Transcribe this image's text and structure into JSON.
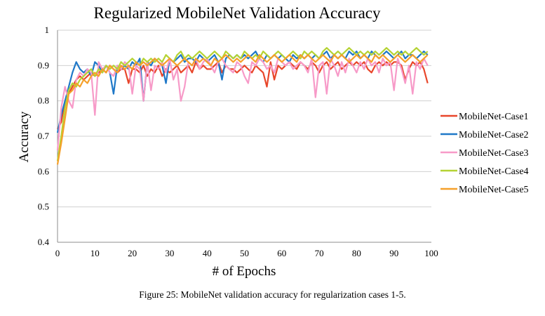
{
  "caption": "Figure 25: MobileNet validation accuracy for regularization cases 1-5.",
  "chart_data": {
    "type": "line",
    "title": "Regularized MobileNet Validation Accuracy",
    "xlabel": "# of Epochs",
    "ylabel": "Accuracy",
    "xlim": [
      0,
      100
    ],
    "ylim": [
      0.4,
      1.0
    ],
    "x_ticks": [
      0,
      10,
      20,
      30,
      40,
      50,
      60,
      70,
      80,
      90,
      100
    ],
    "y_ticks": [
      0.4,
      0.5,
      0.6,
      0.7,
      0.8,
      0.9,
      1
    ],
    "y_tick_labels": [
      "0.4",
      "0.5",
      "0.6",
      "0.7",
      "0.8",
      "0.9",
      "1"
    ],
    "grid": "horizontal",
    "legend_position": "right",
    "series": [
      {
        "name": "MobileNet-Case1",
        "color": "#e8462a",
        "x": [
          0,
          1,
          2,
          3,
          4,
          5,
          6,
          7,
          8,
          9,
          10,
          11,
          12,
          13,
          14,
          15,
          16,
          17,
          18,
          19,
          20,
          21,
          22,
          23,
          24,
          25,
          26,
          27,
          28,
          29,
          30,
          31,
          32,
          33,
          34,
          35,
          36,
          37,
          38,
          39,
          40,
          41,
          42,
          43,
          44,
          45,
          46,
          47,
          48,
          49,
          50,
          51,
          52,
          53,
          54,
          55,
          56,
          57,
          58,
          59,
          60,
          61,
          62,
          63,
          64,
          65,
          66,
          67,
          68,
          69,
          70,
          71,
          72,
          73,
          74,
          75,
          76,
          77,
          78,
          79,
          80,
          81,
          82,
          83,
          84,
          85,
          86,
          87,
          88,
          89,
          90,
          91,
          92,
          93,
          94,
          95,
          96,
          97,
          98,
          99
        ],
        "values": [
          0.72,
          0.74,
          0.8,
          0.82,
          0.84,
          0.86,
          0.87,
          0.86,
          0.87,
          0.88,
          0.87,
          0.88,
          0.89,
          0.88,
          0.9,
          0.89,
          0.88,
          0.89,
          0.89,
          0.85,
          0.89,
          0.89,
          0.88,
          0.9,
          0.87,
          0.89,
          0.88,
          0.9,
          0.87,
          0.89,
          0.88,
          0.89,
          0.9,
          0.88,
          0.89,
          0.9,
          0.88,
          0.91,
          0.89,
          0.9,
          0.89,
          0.89,
          0.9,
          0.91,
          0.88,
          0.9,
          0.89,
          0.89,
          0.88,
          0.89,
          0.9,
          0.89,
          0.88,
          0.9,
          0.89,
          0.88,
          0.84,
          0.91,
          0.86,
          0.9,
          0.89,
          0.9,
          0.91,
          0.9,
          0.89,
          0.91,
          0.9,
          0.89,
          0.91,
          0.9,
          0.88,
          0.9,
          0.91,
          0.89,
          0.9,
          0.91,
          0.89,
          0.9,
          0.91,
          0.9,
          0.91,
          0.9,
          0.91,
          0.89,
          0.88,
          0.9,
          0.91,
          0.9,
          0.91,
          0.9,
          0.91,
          0.91,
          0.9,
          0.86,
          0.89,
          0.91,
          0.9,
          0.91,
          0.89,
          0.85
        ]
      },
      {
        "name": "MobileNet-Case2",
        "color": "#1f78c8",
        "x": [
          0,
          1,
          2,
          3,
          4,
          5,
          6,
          7,
          8,
          9,
          10,
          11,
          12,
          13,
          14,
          15,
          16,
          17,
          18,
          19,
          20,
          21,
          22,
          23,
          24,
          25,
          26,
          27,
          28,
          29,
          30,
          31,
          32,
          33,
          34,
          35,
          36,
          37,
          38,
          39,
          40,
          41,
          42,
          43,
          44,
          45,
          46,
          47,
          48,
          49,
          50,
          51,
          52,
          53,
          54,
          55,
          56,
          57,
          58,
          59,
          60,
          61,
          62,
          63,
          64,
          65,
          66,
          67,
          68,
          69,
          70,
          71,
          72,
          73,
          74,
          75,
          76,
          77,
          78,
          79,
          80,
          81,
          82,
          83,
          84,
          85,
          86,
          87,
          88,
          89,
          90,
          91,
          92,
          93,
          94,
          95,
          96,
          97,
          98,
          99
        ],
        "values": [
          0.71,
          0.76,
          0.8,
          0.84,
          0.88,
          0.91,
          0.89,
          0.88,
          0.89,
          0.87,
          0.91,
          0.9,
          0.88,
          0.9,
          0.88,
          0.82,
          0.9,
          0.89,
          0.9,
          0.89,
          0.91,
          0.9,
          0.92,
          0.8,
          0.91,
          0.9,
          0.92,
          0.91,
          0.9,
          0.85,
          0.92,
          0.91,
          0.92,
          0.93,
          0.91,
          0.92,
          0.92,
          0.91,
          0.93,
          0.92,
          0.91,
          0.92,
          0.93,
          0.91,
          0.86,
          0.92,
          0.93,
          0.92,
          0.93,
          0.92,
          0.93,
          0.92,
          0.93,
          0.94,
          0.92,
          0.91,
          0.93,
          0.92,
          0.93,
          0.92,
          0.93,
          0.92,
          0.91,
          0.93,
          0.92,
          0.93,
          0.92,
          0.93,
          0.92,
          0.93,
          0.92,
          0.93,
          0.94,
          0.92,
          0.93,
          0.92,
          0.93,
          0.92,
          0.94,
          0.93,
          0.94,
          0.92,
          0.93,
          0.92,
          0.94,
          0.93,
          0.92,
          0.93,
          0.94,
          0.93,
          0.92,
          0.93,
          0.94,
          0.92,
          0.93,
          0.93,
          0.92,
          0.93,
          0.94,
          0.93
        ]
      },
      {
        "name": "MobileNet-Case3",
        "color": "#f79ac8",
        "x": [
          0,
          1,
          2,
          3,
          4,
          5,
          6,
          7,
          8,
          9,
          10,
          11,
          12,
          13,
          14,
          15,
          16,
          17,
          18,
          19,
          20,
          21,
          22,
          23,
          24,
          25,
          26,
          27,
          28,
          29,
          30,
          31,
          32,
          33,
          34,
          35,
          36,
          37,
          38,
          39,
          40,
          41,
          42,
          43,
          44,
          45,
          46,
          47,
          48,
          49,
          50,
          51,
          52,
          53,
          54,
          55,
          56,
          57,
          58,
          59,
          60,
          61,
          62,
          63,
          64,
          65,
          66,
          67,
          68,
          69,
          70,
          71,
          72,
          73,
          74,
          75,
          76,
          77,
          78,
          79,
          80,
          81,
          82,
          83,
          84,
          85,
          86,
          87,
          88,
          89,
          90,
          91,
          92,
          93,
          94,
          95,
          96,
          97,
          98,
          99
        ],
        "values": [
          0.66,
          0.78,
          0.84,
          0.8,
          0.78,
          0.86,
          0.88,
          0.87,
          0.89,
          0.88,
          0.76,
          0.91,
          0.89,
          0.9,
          0.88,
          0.87,
          0.9,
          0.89,
          0.91,
          0.9,
          0.82,
          0.9,
          0.89,
          0.8,
          0.91,
          0.83,
          0.9,
          0.89,
          0.91,
          0.88,
          0.92,
          0.86,
          0.89,
          0.8,
          0.84,
          0.91,
          0.9,
          0.92,
          0.89,
          0.91,
          0.92,
          0.9,
          0.88,
          0.91,
          0.92,
          0.9,
          0.89,
          0.88,
          0.91,
          0.9,
          0.87,
          0.85,
          0.91,
          0.9,
          0.92,
          0.91,
          0.89,
          0.9,
          0.88,
          0.92,
          0.91,
          0.9,
          0.91,
          0.89,
          0.9,
          0.91,
          0.9,
          0.88,
          0.92,
          0.81,
          0.9,
          0.91,
          0.82,
          0.92,
          0.9,
          0.87,
          0.91,
          0.88,
          0.92,
          0.9,
          0.88,
          0.91,
          0.89,
          0.92,
          0.9,
          0.91,
          0.88,
          0.92,
          0.9,
          0.91,
          0.83,
          0.92,
          0.89,
          0.85,
          0.9,
          0.82,
          0.91,
          0.89,
          0.92,
          0.9
        ]
      },
      {
        "name": "MobileNet-Case4",
        "color": "#b5d334",
        "x": [
          0,
          1,
          2,
          3,
          4,
          5,
          6,
          7,
          8,
          9,
          10,
          11,
          12,
          13,
          14,
          15,
          16,
          17,
          18,
          19,
          20,
          21,
          22,
          23,
          24,
          25,
          26,
          27,
          28,
          29,
          30,
          31,
          32,
          33,
          34,
          35,
          36,
          37,
          38,
          39,
          40,
          41,
          42,
          43,
          44,
          45,
          46,
          47,
          48,
          49,
          50,
          51,
          52,
          53,
          54,
          55,
          56,
          57,
          58,
          59,
          60,
          61,
          62,
          63,
          64,
          65,
          66,
          67,
          68,
          69,
          70,
          71,
          72,
          73,
          74,
          75,
          76,
          77,
          78,
          79,
          80,
          81,
          82,
          83,
          84,
          85,
          86,
          87,
          88,
          89,
          90,
          91,
          92,
          93,
          94,
          95,
          96,
          97,
          98,
          99
        ],
        "values": [
          0.63,
          0.7,
          0.78,
          0.83,
          0.85,
          0.84,
          0.86,
          0.87,
          0.88,
          0.89,
          0.87,
          0.89,
          0.88,
          0.9,
          0.89,
          0.9,
          0.89,
          0.91,
          0.9,
          0.91,
          0.92,
          0.91,
          0.9,
          0.92,
          0.91,
          0.92,
          0.91,
          0.92,
          0.91,
          0.93,
          0.92,
          0.91,
          0.93,
          0.94,
          0.92,
          0.93,
          0.92,
          0.93,
          0.94,
          0.93,
          0.92,
          0.93,
          0.94,
          0.93,
          0.92,
          0.94,
          0.93,
          0.92,
          0.93,
          0.92,
          0.94,
          0.93,
          0.92,
          0.93,
          0.92,
          0.94,
          0.93,
          0.92,
          0.93,
          0.94,
          0.93,
          0.92,
          0.93,
          0.94,
          0.93,
          0.92,
          0.94,
          0.93,
          0.94,
          0.93,
          0.92,
          0.94,
          0.95,
          0.94,
          0.93,
          0.94,
          0.93,
          0.94,
          0.95,
          0.94,
          0.93,
          0.94,
          0.93,
          0.94,
          0.93,
          0.94,
          0.93,
          0.94,
          0.95,
          0.94,
          0.93,
          0.94,
          0.93,
          0.94,
          0.93,
          0.94,
          0.95,
          0.94,
          0.93,
          0.94
        ]
      },
      {
        "name": "MobileNet-Case5",
        "color": "#f5a02a",
        "x": [
          0,
          1,
          2,
          3,
          4,
          5,
          6,
          7,
          8,
          9,
          10,
          11,
          12,
          13,
          14,
          15,
          16,
          17,
          18,
          19,
          20,
          21,
          22,
          23,
          24,
          25,
          26,
          27,
          28,
          29,
          30,
          31,
          32,
          33,
          34,
          35,
          36,
          37,
          38,
          39,
          40,
          41,
          42,
          43,
          44,
          45,
          46,
          47,
          48,
          49,
          50,
          51,
          52,
          53,
          54,
          55,
          56,
          57,
          58,
          59,
          60,
          61,
          62,
          63,
          64,
          65,
          66,
          67,
          68,
          69,
          70,
          71,
          72,
          73,
          74,
          75,
          76,
          77,
          78,
          79,
          80,
          81,
          82,
          83,
          84,
          85,
          86,
          87,
          88,
          89,
          90,
          91,
          92,
          93,
          94,
          95,
          96,
          97,
          98,
          99
        ],
        "values": [
          0.62,
          0.68,
          0.75,
          0.82,
          0.83,
          0.85,
          0.84,
          0.86,
          0.85,
          0.87,
          0.88,
          0.87,
          0.89,
          0.88,
          0.9,
          0.89,
          0.88,
          0.9,
          0.89,
          0.9,
          0.89,
          0.91,
          0.9,
          0.91,
          0.9,
          0.91,
          0.92,
          0.91,
          0.9,
          0.91,
          0.92,
          0.91,
          0.9,
          0.91,
          0.92,
          0.91,
          0.9,
          0.92,
          0.91,
          0.92,
          0.91,
          0.9,
          0.92,
          0.91,
          0.92,
          0.93,
          0.92,
          0.91,
          0.92,
          0.91,
          0.92,
          0.93,
          0.92,
          0.91,
          0.93,
          0.92,
          0.91,
          0.92,
          0.93,
          0.92,
          0.91,
          0.92,
          0.93,
          0.92,
          0.91,
          0.93,
          0.92,
          0.93,
          0.92,
          0.91,
          0.92,
          0.93,
          0.92,
          0.91,
          0.93,
          0.92,
          0.93,
          0.92,
          0.91,
          0.92,
          0.93,
          0.92,
          0.93,
          0.92,
          0.91,
          0.93,
          0.92,
          0.93,
          0.92,
          0.91,
          0.92,
          0.93,
          0.92,
          0.91,
          0.92,
          0.93,
          0.92,
          0.91,
          0.92,
          0.93
        ]
      }
    ]
  }
}
